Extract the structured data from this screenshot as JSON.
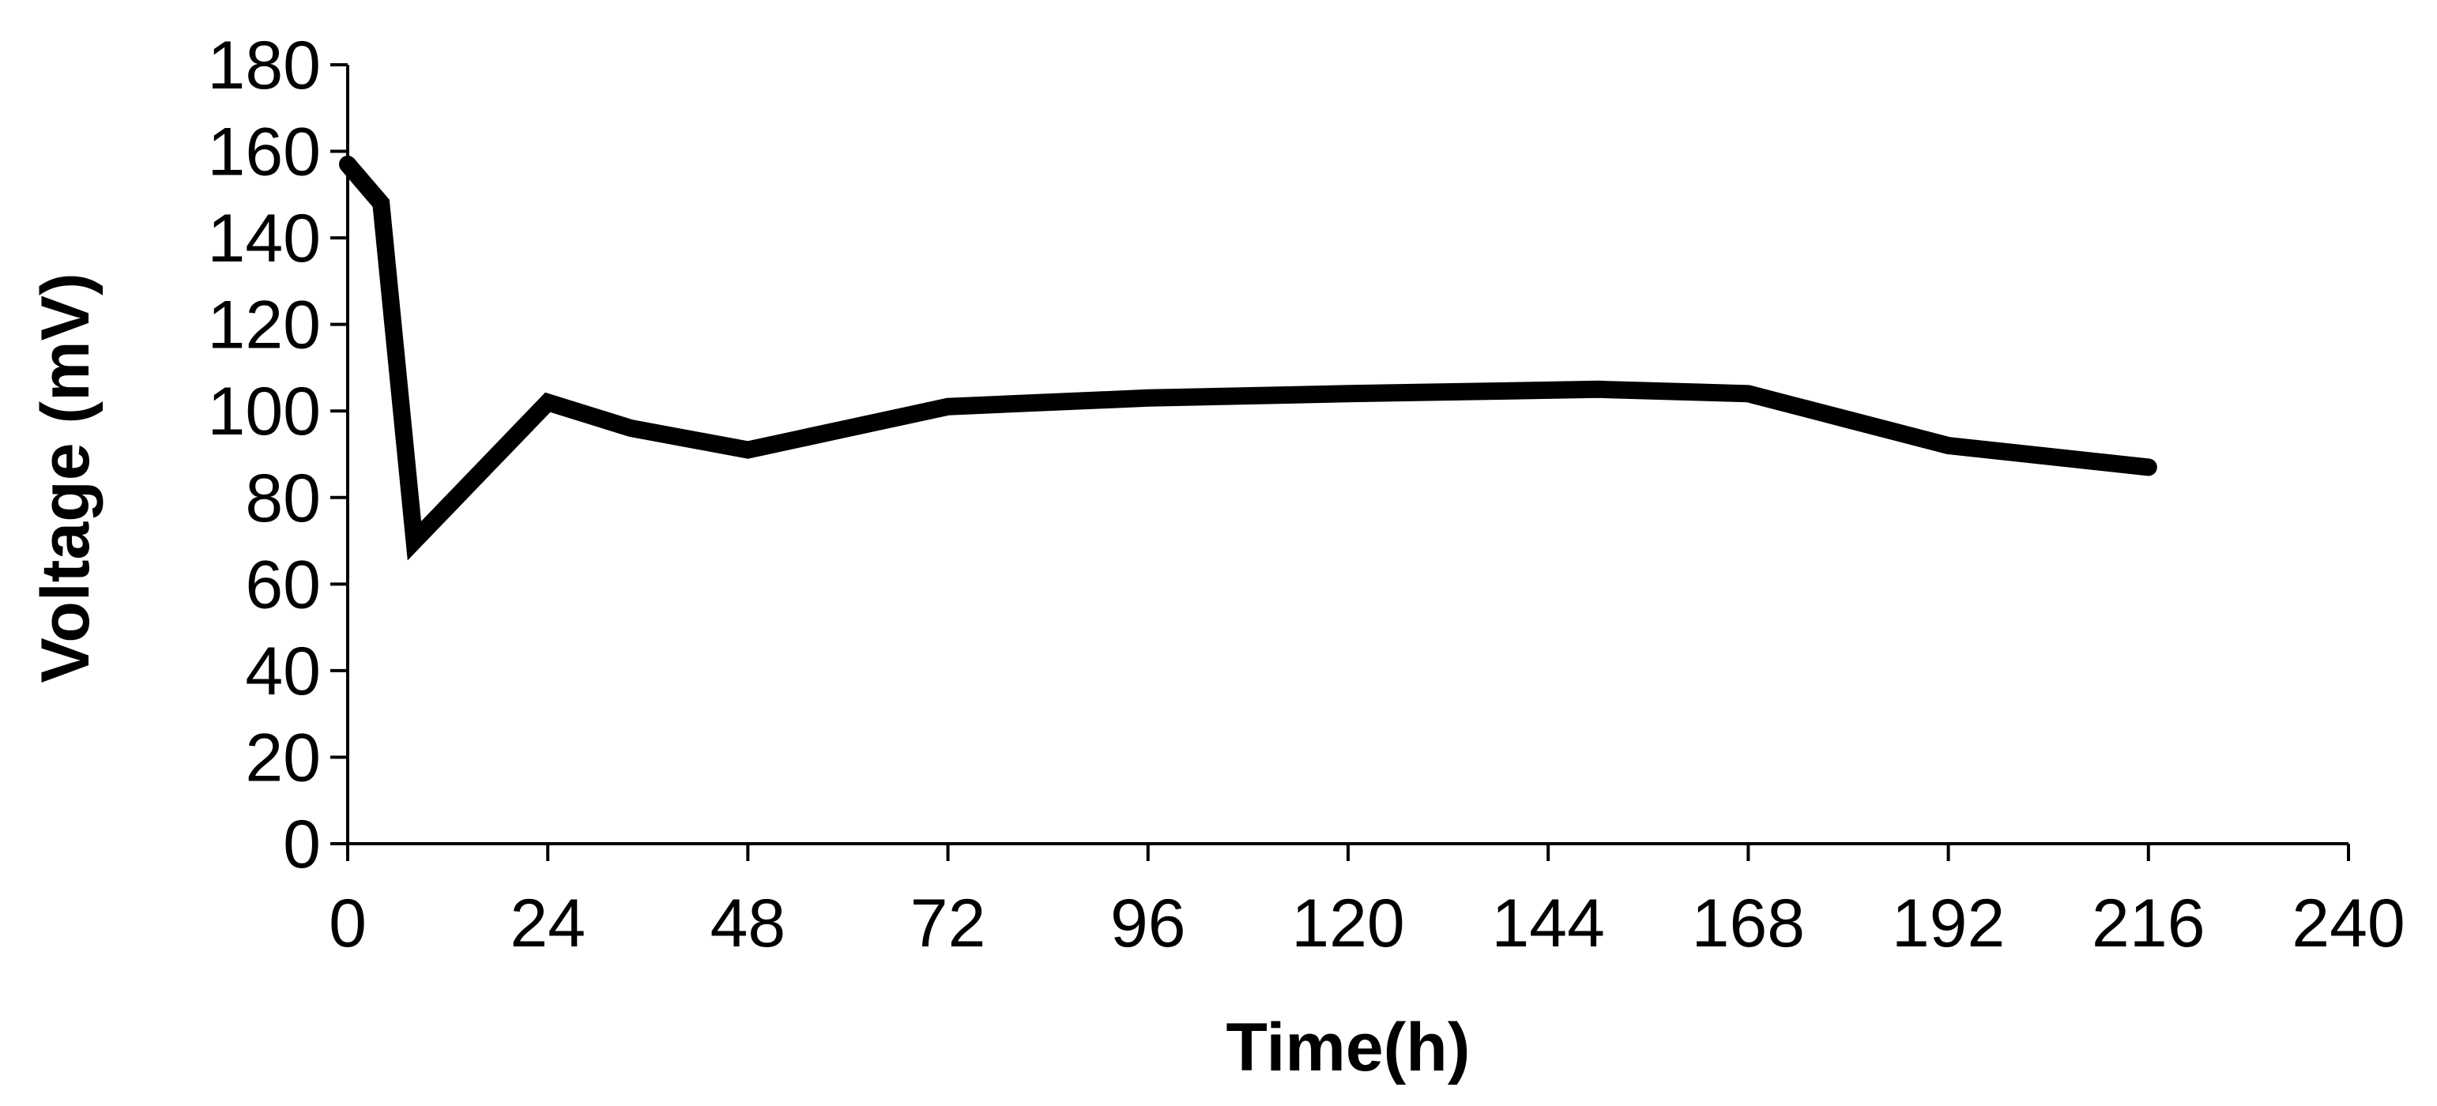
{
  "chart_data": {
    "type": "line",
    "title": "",
    "xlabel": "Time(h)",
    "ylabel": "Voltage (mV)",
    "xlim": [
      0,
      240
    ],
    "ylim": [
      0,
      180
    ],
    "xticks": [
      0,
      24,
      48,
      72,
      96,
      120,
      144,
      168,
      192,
      216,
      240
    ],
    "yticks": [
      0,
      20,
      40,
      60,
      80,
      100,
      120,
      140,
      160,
      180
    ],
    "xtick_labels": [
      "0",
      "24",
      "48",
      "72",
      "96",
      "120",
      "144",
      "168",
      "192",
      "216",
      "240"
    ],
    "ytick_labels": [
      "0",
      "20",
      "40",
      "60",
      "80",
      "100",
      "120",
      "140",
      "160",
      "180"
    ],
    "grid": false,
    "legend": "none",
    "line_color": "#000000",
    "series": [
      {
        "x": [
          0,
          4,
          8,
          24,
          34,
          48,
          60,
          72,
          96,
          120,
          150,
          168,
          180,
          192,
          216
        ],
        "y": [
          157,
          148,
          70,
          102,
          96,
          91,
          96,
          101,
          103,
          104,
          105,
          104,
          98,
          92,
          87
        ]
      }
    ]
  }
}
